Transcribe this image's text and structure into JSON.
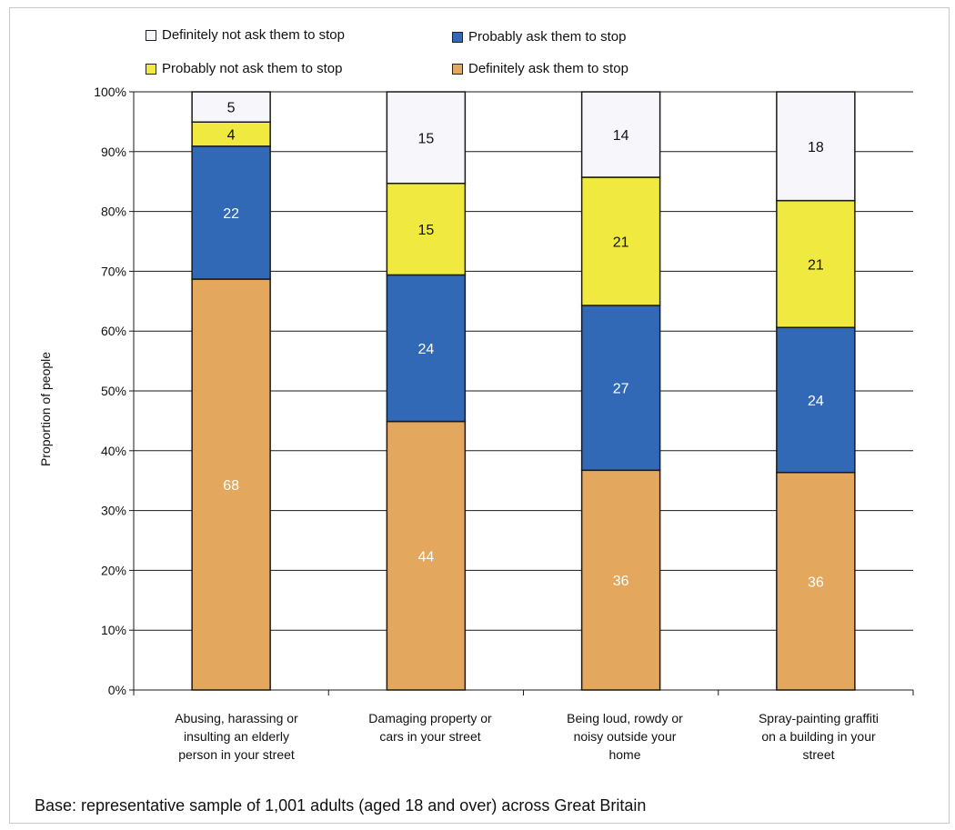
{
  "chart_data": {
    "type": "bar",
    "stacked": true,
    "ylabel": "Proportion of people",
    "ylim": [
      0,
      100
    ],
    "y_ticks": [
      "0%",
      "10%",
      "20%",
      "30%",
      "40%",
      "50%",
      "60%",
      "70%",
      "80%",
      "90%",
      "100%"
    ],
    "categories": [
      "Abusing, harassing or insulting an elderly person in your street",
      "Damaging property or cars in your street",
      "Being loud, rowdy or noisy outside your home",
      "Spray-painting graffiti on a building in your street"
    ],
    "series": [
      {
        "name": "Definitely ask them to stop",
        "color": "#e3a75e",
        "label_color": "#ffffff",
        "values": [
          68,
          44,
          36,
          36
        ]
      },
      {
        "name": "Probably ask them to stop",
        "color": "#3269b6",
        "label_color": "#ffffff",
        "values": [
          22,
          24,
          27,
          24
        ]
      },
      {
        "name": "Probably not ask them to stop",
        "color": "#f0e93f",
        "label_color": "#111111",
        "values": [
          4,
          15,
          21,
          21
        ]
      },
      {
        "name": "Definitely not ask them to stop",
        "color": "#f7f6fa",
        "label_color": "#111111",
        "values": [
          5,
          15,
          14,
          18
        ]
      }
    ],
    "grid": true,
    "legend_position": "top"
  },
  "legend": {
    "definitely_not": "Definitely not ask them to stop",
    "probably_not": "Probably not ask them to stop",
    "probably": "Probably ask them to stop",
    "definitely": "Definitely ask them to stop"
  },
  "category_lines": [
    [
      "Abusing, harassing or",
      "insulting an elderly",
      "person in your street"
    ],
    [
      "Damaging property or",
      "cars in your street"
    ],
    [
      "Being loud, rowdy or",
      "noisy outside your",
      "home"
    ],
    [
      "Spray-painting graffiti",
      "on a building in your",
      "street"
    ]
  ],
  "footnote": "Base: representative sample of 1,001 adults (aged 18 and over) across Great Britain"
}
